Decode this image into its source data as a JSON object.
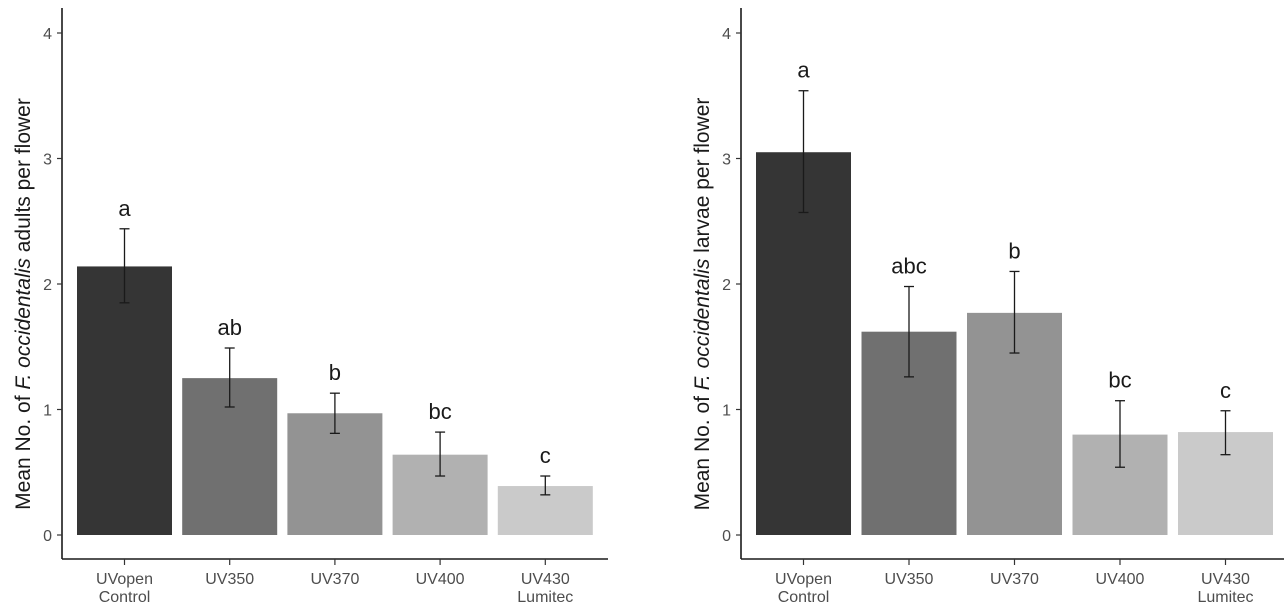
{
  "chart_data": [
    {
      "type": "bar",
      "title": "",
      "xlabel": "",
      "ylabel": {
        "prefix": "Mean No. of ",
        "species": "F. occidentalis",
        "suffix": " adults per flower"
      },
      "ylim": [
        0,
        4
      ],
      "yticks": [
        "0",
        "1",
        "2",
        "3",
        "4"
      ],
      "grid": false,
      "categories": [
        [
          "UVopen",
          "Control"
        ],
        [
          "UV350",
          ""
        ],
        [
          "UV370",
          ""
        ],
        [
          "UV400",
          ""
        ],
        [
          "UV430",
          "Lumitec"
        ]
      ],
      "values": [
        2.14,
        1.25,
        0.97,
        0.64,
        0.39
      ],
      "error_low": [
        1.85,
        1.02,
        0.81,
        0.47,
        0.32
      ],
      "error_high": [
        2.44,
        1.49,
        1.13,
        0.82,
        0.47
      ],
      "sig_letters": [
        "a",
        "ab",
        "b",
        "bc",
        "c"
      ],
      "bar_colors": [
        "#353535",
        "#707070",
        "#939393",
        "#b1b1b1",
        "#cacaca"
      ]
    },
    {
      "type": "bar",
      "title": "",
      "xlabel": "",
      "ylabel": {
        "prefix": "Mean No. of ",
        "species": "F. occidentalis",
        "suffix": " larvae per flower"
      },
      "ylim": [
        0,
        4
      ],
      "yticks": [
        "0",
        "1",
        "2",
        "3",
        "4"
      ],
      "grid": false,
      "categories": [
        [
          "UVopen",
          "Control"
        ],
        [
          "UV350",
          ""
        ],
        [
          "UV370",
          ""
        ],
        [
          "UV400",
          ""
        ],
        [
          "UV430",
          "Lumitec"
        ]
      ],
      "values": [
        3.05,
        1.62,
        1.77,
        0.8,
        0.82
      ],
      "error_low": [
        2.57,
        1.26,
        1.45,
        0.54,
        0.64
      ],
      "error_high": [
        3.54,
        1.98,
        2.1,
        1.07,
        0.99
      ],
      "sig_letters": [
        "a",
        "abc",
        "b",
        "bc",
        "c"
      ],
      "bar_colors": [
        "#353535",
        "#707070",
        "#939393",
        "#b1b1b1",
        "#cacaca"
      ]
    }
  ]
}
